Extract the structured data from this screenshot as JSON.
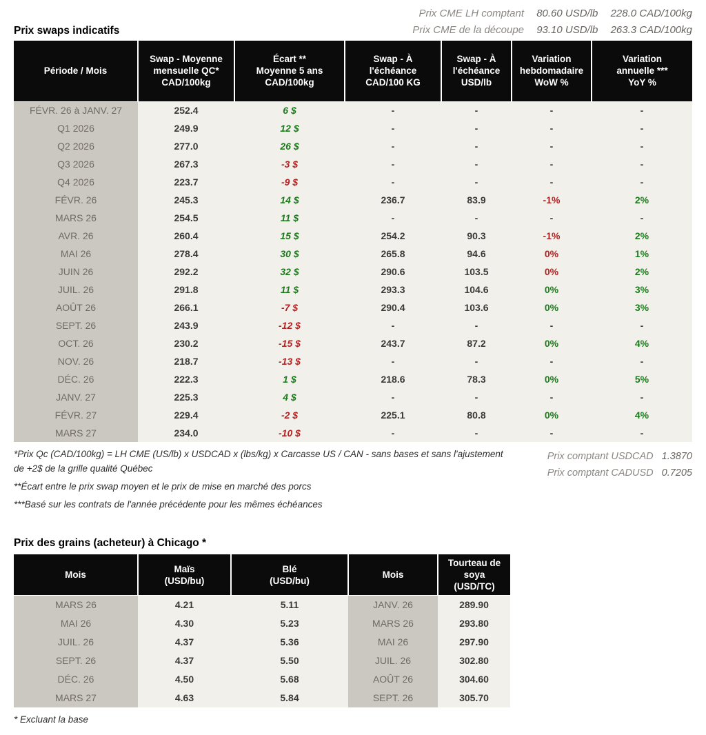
{
  "header": {
    "cme_lines": [
      {
        "label": "Prix CME LH comptant",
        "usd": "80.60 USD/lb",
        "cad": "228.0 CAD/100kg"
      },
      {
        "label": "Prix CME de la découpe",
        "usd": "93.10 USD/lb",
        "cad": "263.3 CAD/100kg"
      }
    ]
  },
  "colors": {
    "positive": "#1d7a1d",
    "negative": "#b32222",
    "header_bg": "#0b0b0b",
    "period_bg": "#cbc8c2",
    "body_bg": "#f2f0eb"
  },
  "swaps": {
    "title": "Prix swaps indicatifs",
    "columns": [
      "Période / Mois",
      "Swap - Moyenne\nmensuelle QC*\nCAD/100kg",
      "Écart **\nMoyenne 5 ans\nCAD/100kg",
      "Swap - À\nl'échéance\nCAD/100 KG",
      "Swap - À\nl'échéance\nUSD/lb",
      "Variation\nhebdomadaire\nWoW %",
      "Variation\nannuelle ***\nYoY %"
    ],
    "rows": [
      {
        "period": "FÉVR. 26 à  JANV. 27",
        "avg": "252.4",
        "ecart": "6 $",
        "ecart_c": "pos",
        "cad": "-",
        "usd": "-",
        "wow": "-",
        "wow_c": "",
        "yoy": "-",
        "yoy_c": ""
      },
      {
        "period": "Q1 2026",
        "avg": "249.9",
        "ecart": "12 $",
        "ecart_c": "pos",
        "cad": "-",
        "usd": "-",
        "wow": "-",
        "wow_c": "",
        "yoy": "-",
        "yoy_c": ""
      },
      {
        "period": "Q2 2026",
        "avg": "277.0",
        "ecart": "26 $",
        "ecart_c": "pos",
        "cad": "-",
        "usd": "-",
        "wow": "-",
        "wow_c": "",
        "yoy": "-",
        "yoy_c": ""
      },
      {
        "period": "Q3 2026",
        "avg": "267.3",
        "ecart": "-3 $",
        "ecart_c": "neg",
        "cad": "-",
        "usd": "-",
        "wow": "-",
        "wow_c": "",
        "yoy": "-",
        "yoy_c": ""
      },
      {
        "period": "Q4 2026",
        "avg": "223.7",
        "ecart": "-9 $",
        "ecart_c": "neg",
        "cad": "-",
        "usd": "-",
        "wow": "-",
        "wow_c": "",
        "yoy": "-",
        "yoy_c": ""
      },
      {
        "period": "FÉVR. 26",
        "avg": "245.3",
        "ecart": "14 $",
        "ecart_c": "pos",
        "cad": "236.7",
        "usd": "83.9",
        "wow": "-1%",
        "wow_c": "neg",
        "yoy": "2%",
        "yoy_c": "pos"
      },
      {
        "period": "MARS 26",
        "avg": "254.5",
        "ecart": "11 $",
        "ecart_c": "pos",
        "cad": "-",
        "usd": "-",
        "wow": "-",
        "wow_c": "",
        "yoy": "-",
        "yoy_c": ""
      },
      {
        "period": "AVR. 26",
        "avg": "260.4",
        "ecart": "15 $",
        "ecart_c": "pos",
        "cad": "254.2",
        "usd": "90.3",
        "wow": "-1%",
        "wow_c": "neg",
        "yoy": "2%",
        "yoy_c": "pos"
      },
      {
        "period": "MAI 26",
        "avg": "278.4",
        "ecart": "30 $",
        "ecart_c": "pos",
        "cad": "265.8",
        "usd": "94.6",
        "wow": "0%",
        "wow_c": "neg",
        "yoy": "1%",
        "yoy_c": "pos"
      },
      {
        "period": "JUIN 26",
        "avg": "292.2",
        "ecart": "32 $",
        "ecart_c": "pos",
        "cad": "290.6",
        "usd": "103.5",
        "wow": "0%",
        "wow_c": "neg",
        "yoy": "2%",
        "yoy_c": "pos"
      },
      {
        "period": "JUIL. 26",
        "avg": "291.8",
        "ecart": "11 $",
        "ecart_c": "pos",
        "cad": "293.3",
        "usd": "104.6",
        "wow": "0%",
        "wow_c": "pos",
        "yoy": "3%",
        "yoy_c": "pos"
      },
      {
        "period": "AOÛT 26",
        "avg": "266.1",
        "ecart": "-7 $",
        "ecart_c": "neg",
        "cad": "290.4",
        "usd": "103.6",
        "wow": "0%",
        "wow_c": "pos",
        "yoy": "3%",
        "yoy_c": "pos"
      },
      {
        "period": "SEPT. 26",
        "avg": "243.9",
        "ecart": "-12 $",
        "ecart_c": "neg",
        "cad": "-",
        "usd": "-",
        "wow": "-",
        "wow_c": "",
        "yoy": "-",
        "yoy_c": ""
      },
      {
        "period": "OCT. 26",
        "avg": "230.2",
        "ecart": "-15 $",
        "ecart_c": "neg",
        "cad": "243.7",
        "usd": "87.2",
        "wow": "0%",
        "wow_c": "pos",
        "yoy": "4%",
        "yoy_c": "pos"
      },
      {
        "period": "NOV. 26",
        "avg": "218.7",
        "ecart": "-13 $",
        "ecart_c": "neg",
        "cad": "-",
        "usd": "-",
        "wow": "-",
        "wow_c": "",
        "yoy": "-",
        "yoy_c": ""
      },
      {
        "period": "DÉC. 26",
        "avg": "222.3",
        "ecart": "1 $",
        "ecart_c": "pos",
        "cad": "218.6",
        "usd": "78.3",
        "wow": "0%",
        "wow_c": "pos",
        "yoy": "5%",
        "yoy_c": "pos"
      },
      {
        "period": "JANV. 27",
        "avg": "225.3",
        "ecart": "4 $",
        "ecart_c": "pos",
        "cad": "-",
        "usd": "-",
        "wow": "-",
        "wow_c": "",
        "yoy": "-",
        "yoy_c": ""
      },
      {
        "period": "FÉVR. 27",
        "avg": "229.4",
        "ecart": "-2 $",
        "ecart_c": "neg",
        "cad": "225.1",
        "usd": "80.8",
        "wow": "0%",
        "wow_c": "pos",
        "yoy": "4%",
        "yoy_c": "pos"
      },
      {
        "period": "MARS 27",
        "avg": "234.0",
        "ecart": "-10 $",
        "ecart_c": "neg",
        "cad": "-",
        "usd": "-",
        "wow": "-",
        "wow_c": "",
        "yoy": "-",
        "yoy_c": ""
      }
    ],
    "footnotes": [
      "*Prix Qc (CAD/100kg) = LH CME (US/lb) x USDCAD x (lbs/kg) x Carcasse US / CAN - sans bases et sans l'ajustement de +2$ de la grille qualité Québec",
      "**Écart entre le prix swap moyen et le prix de mise en marché des porcs",
      "***Basé sur les contrats de l'année précédente pour les mêmes échéances"
    ]
  },
  "fx": [
    {
      "label": "Prix comptant USDCAD",
      "value": "1.3870"
    },
    {
      "label": "Prix comptant CADUSD",
      "value": "0.7205"
    }
  ],
  "grains": {
    "title": "Prix des grains (acheteur) à Chicago *",
    "columns": [
      "Mois",
      "Maïs\n(USD/bu)",
      "Blé\n(USD/bu)",
      "Mois",
      "Tourteau de\nsoya\n(USD/TC)"
    ],
    "rows": [
      {
        "mois1": "MARS 26",
        "mais": "4.21",
        "ble": "5.11",
        "mois2": "JANV. 26",
        "tourteau": "289.90"
      },
      {
        "mois1": "MAI 26",
        "mais": "4.30",
        "ble": "5.23",
        "mois2": "MARS 26",
        "tourteau": "293.80"
      },
      {
        "mois1": "JUIL. 26",
        "mais": "4.37",
        "ble": "5.36",
        "mois2": "MAI 26",
        "tourteau": "297.90"
      },
      {
        "mois1": "SEPT. 26",
        "mais": "4.37",
        "ble": "5.50",
        "mois2": "JUIL. 26",
        "tourteau": "302.80"
      },
      {
        "mois1": "DÉC. 26",
        "mais": "4.50",
        "ble": "5.68",
        "mois2": "AOÛT 26",
        "tourteau": "304.60"
      },
      {
        "mois1": "MARS 27",
        "mais": "4.63",
        "ble": "5.84",
        "mois2": "SEPT. 26",
        "tourteau": "305.70"
      }
    ],
    "footnote": "* Excluant la base"
  }
}
